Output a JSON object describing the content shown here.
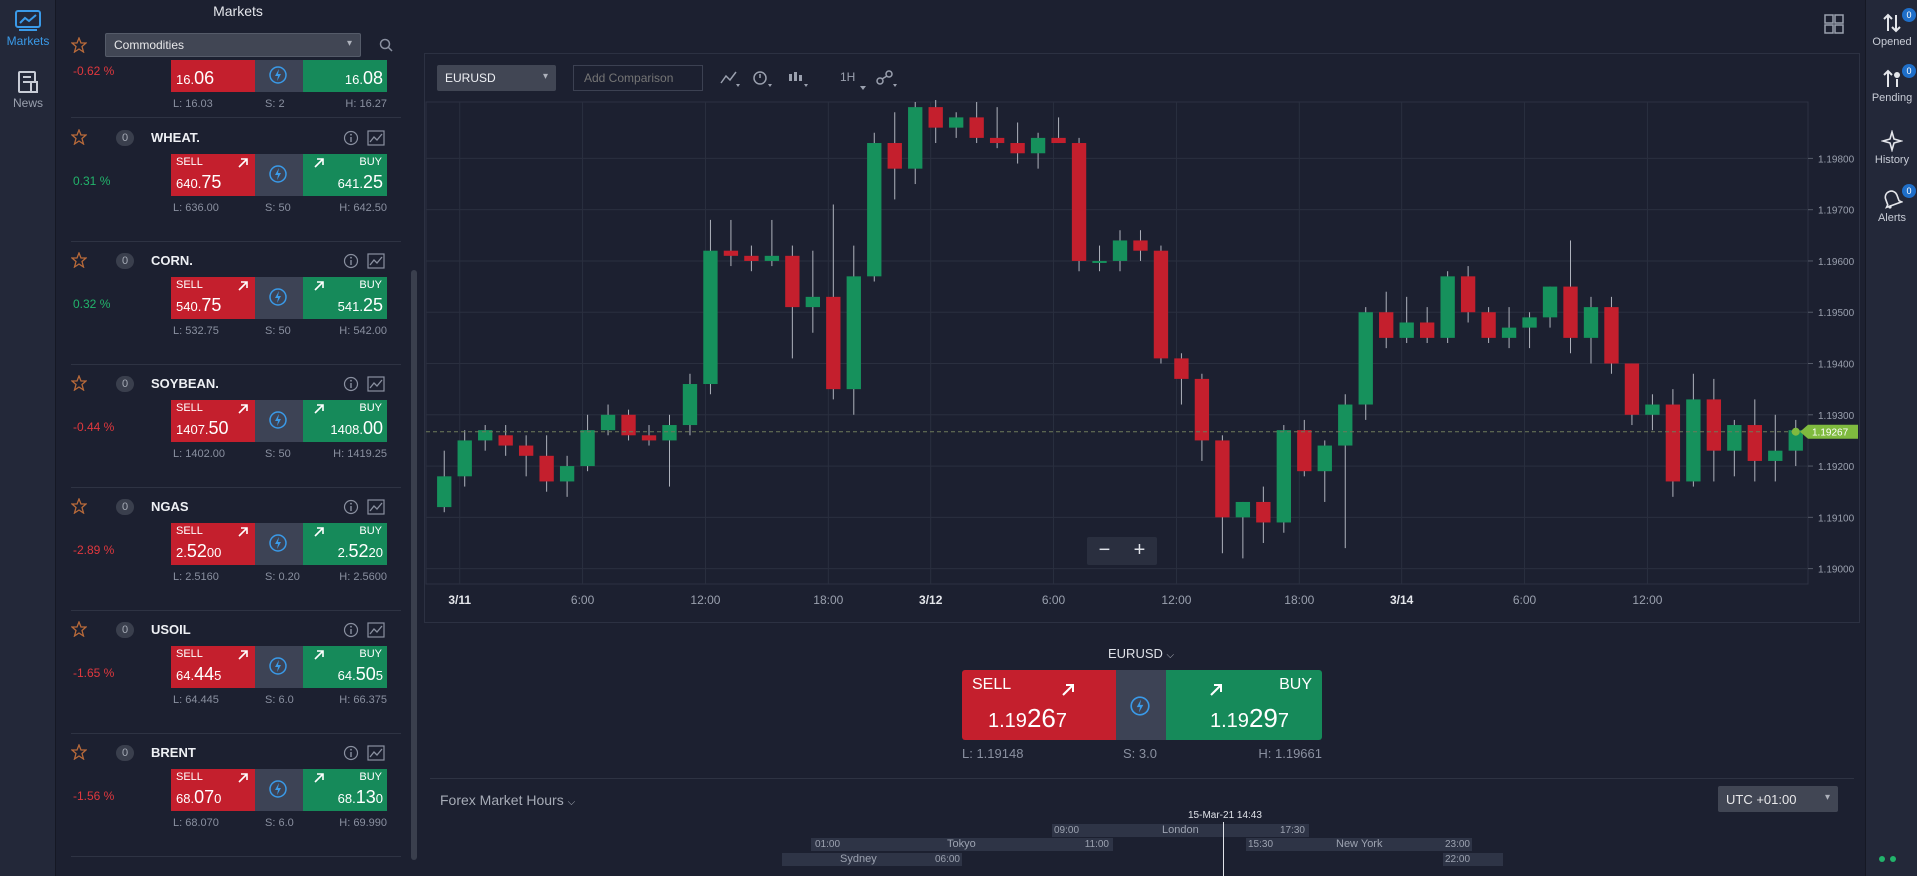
{
  "left_rail": {
    "markets_label": "Markets",
    "news_label": "News"
  },
  "markets": {
    "title": "Markets",
    "category": "Commodities",
    "top_row": {
      "change": "-0.62 %",
      "sell_small": "16.",
      "sell_big": "06",
      "buy_small": "16.",
      "buy_big": "08",
      "low": "L: 16.03",
      "spread": "S: 2",
      "high": "H: 16.27"
    },
    "rows": [
      {
        "count": "0",
        "name": "WHEAT.",
        "change": "0.31 %",
        "dir": "pos",
        "sell_label": "SELL",
        "buy_label": "BUY",
        "sell_a": "640.",
        "sell_b": "75",
        "sell_c": "",
        "buy_a": "641.",
        "buy_b": "25",
        "buy_c": "",
        "low": "L: 636.00",
        "spread": "S: 50",
        "high": "H: 642.50"
      },
      {
        "count": "0",
        "name": "CORN.",
        "change": "0.32 %",
        "dir": "pos",
        "sell_label": "SELL",
        "buy_label": "BUY",
        "sell_a": "540.",
        "sell_b": "75",
        "sell_c": "",
        "buy_a": "541.",
        "buy_b": "25",
        "buy_c": "",
        "low": "L: 532.75",
        "spread": "S: 50",
        "high": "H: 542.00"
      },
      {
        "count": "0",
        "name": "SOYBEAN.",
        "change": "-0.44 %",
        "dir": "neg",
        "sell_label": "SELL",
        "buy_label": "BUY",
        "sell_a": "1407.",
        "sell_b": "50",
        "sell_c": "",
        "buy_a": "1408.",
        "buy_b": "00",
        "buy_c": "",
        "low": "L: 1402.00",
        "spread": "S: 50",
        "high": "H: 1419.25"
      },
      {
        "count": "0",
        "name": "NGAS",
        "change": "-2.89 %",
        "dir": "neg",
        "sell_label": "SELL",
        "buy_label": "BUY",
        "sell_a": "2.",
        "sell_b": "52",
        "sell_c": "00",
        "buy_a": "2.",
        "buy_b": "52",
        "buy_c": "20",
        "low": "L: 2.5160",
        "spread": "S: 0.20",
        "high": "H: 2.5600"
      },
      {
        "count": "0",
        "name": "USOIL",
        "change": "-1.65 %",
        "dir": "neg",
        "sell_label": "SELL",
        "buy_label": "BUY",
        "sell_a": "64.",
        "sell_b": "44",
        "sell_c": "5",
        "buy_a": "64.",
        "buy_b": "50",
        "buy_c": "5",
        "low": "L: 64.445",
        "spread": "S: 6.0",
        "high": "H: 66.375"
      },
      {
        "count": "0",
        "name": "BRENT",
        "change": "-1.56 %",
        "dir": "neg",
        "sell_label": "SELL",
        "buy_label": "BUY",
        "sell_a": "68.",
        "sell_b": "07",
        "sell_c": "0",
        "buy_a": "68.",
        "buy_b": "13",
        "buy_c": "0",
        "low": "L: 68.070",
        "spread": "S: 6.0",
        "high": "H: 69.990"
      }
    ]
  },
  "chart": {
    "symbol": "EURUSD",
    "comparison_placeholder": "Add Comparison",
    "interval": "1H",
    "current_price": "1.19267",
    "price_ticks": [
      "1.19800",
      "1.19700",
      "1.19600",
      "1.19500",
      "1.19400",
      "1.19300",
      "1.19200",
      "1.19100",
      "1.19000"
    ],
    "time_ticks": [
      {
        "label": "3/11",
        "bold": true
      },
      {
        "label": "6:00",
        "bold": false
      },
      {
        "label": "12:00",
        "bold": false
      },
      {
        "label": "18:00",
        "bold": false
      },
      {
        "label": "3/12",
        "bold": true
      },
      {
        "label": "6:00",
        "bold": false
      },
      {
        "label": "12:00",
        "bold": false
      },
      {
        "label": "18:00",
        "bold": false
      },
      {
        "label": "3/14",
        "bold": true
      },
      {
        "label": "6:00",
        "bold": false
      },
      {
        "label": "12:00",
        "bold": false
      }
    ],
    "zoom_out": "−",
    "zoom_in": "+"
  },
  "chart_data": {
    "type": "candlestick",
    "symbol": "EURUSD",
    "interval": "1H",
    "ylim": [
      1.1897,
      1.1991
    ],
    "last_price": 1.19267,
    "ohlc": [
      [
        1.1912,
        1.1923,
        1.1911,
        1.1918
      ],
      [
        1.1918,
        1.1927,
        1.1916,
        1.1925
      ],
      [
        1.1925,
        1.1928,
        1.1923,
        1.1927
      ],
      [
        1.1926,
        1.1928,
        1.1922,
        1.1924
      ],
      [
        1.1924,
        1.1926,
        1.1918,
        1.1922
      ],
      [
        1.1922,
        1.1926,
        1.1915,
        1.1917
      ],
      [
        1.1917,
        1.1922,
        1.1914,
        1.192
      ],
      [
        1.192,
        1.193,
        1.1919,
        1.1927
      ],
      [
        1.1927,
        1.1932,
        1.1926,
        1.193
      ],
      [
        1.193,
        1.1931,
        1.1925,
        1.1926
      ],
      [
        1.1926,
        1.1928,
        1.1924,
        1.1925
      ],
      [
        1.1925,
        1.193,
        1.1916,
        1.1928
      ],
      [
        1.1928,
        1.1938,
        1.1926,
        1.1936
      ],
      [
        1.1936,
        1.1968,
        1.1934,
        1.1962
      ],
      [
        1.1962,
        1.1968,
        1.1959,
        1.1961
      ],
      [
        1.1961,
        1.1963,
        1.1958,
        1.196
      ],
      [
        1.196,
        1.1968,
        1.1959,
        1.1961
      ],
      [
        1.1961,
        1.1963,
        1.1941,
        1.1951
      ],
      [
        1.1951,
        1.1962,
        1.1946,
        1.1953
      ],
      [
        1.1953,
        1.1971,
        1.1933,
        1.1935
      ],
      [
        1.1935,
        1.1963,
        1.193,
        1.1957
      ],
      [
        1.1957,
        1.1985,
        1.1956,
        1.1983
      ],
      [
        1.1983,
        1.1989,
        1.1972,
        1.1978
      ],
      [
        1.1978,
        1.1991,
        1.1975,
        1.199
      ],
      [
        1.199,
        1.1993,
        1.1983,
        1.1986
      ],
      [
        1.1986,
        1.1989,
        1.1984,
        1.1988
      ],
      [
        1.1988,
        1.1991,
        1.1983,
        1.1984
      ],
      [
        1.1984,
        1.199,
        1.1982,
        1.1983
      ],
      [
        1.1983,
        1.1987,
        1.1979,
        1.1981
      ],
      [
        1.1981,
        1.1985,
        1.1978,
        1.1984
      ],
      [
        1.1984,
        1.1988,
        1.1983,
        1.1983
      ],
      [
        1.1983,
        1.1984,
        1.1958,
        1.196
      ],
      [
        1.196,
        1.1963,
        1.1958,
        1.196
      ],
      [
        1.196,
        1.1966,
        1.1958,
        1.1964
      ],
      [
        1.1964,
        1.1966,
        1.196,
        1.1962
      ],
      [
        1.1962,
        1.1963,
        1.194,
        1.1941
      ],
      [
        1.1941,
        1.1942,
        1.1932,
        1.1937
      ],
      [
        1.1937,
        1.1938,
        1.1921,
        1.1925
      ],
      [
        1.1925,
        1.1926,
        1.1903,
        1.191
      ],
      [
        1.191,
        1.1913,
        1.1902,
        1.1913
      ],
      [
        1.1913,
        1.1916,
        1.1905,
        1.1909
      ],
      [
        1.1909,
        1.1928,
        1.1907,
        1.1927
      ],
      [
        1.1927,
        1.1929,
        1.1918,
        1.1919
      ],
      [
        1.1919,
        1.1925,
        1.1913,
        1.1924
      ],
      [
        1.1924,
        1.1934,
        1.1904,
        1.1932
      ],
      [
        1.1932,
        1.1951,
        1.1929,
        1.195
      ],
      [
        1.195,
        1.1954,
        1.1943,
        1.1945
      ],
      [
        1.1945,
        1.1953,
        1.1944,
        1.1948
      ],
      [
        1.1948,
        1.1951,
        1.1944,
        1.1945
      ],
      [
        1.1945,
        1.1958,
        1.1944,
        1.1957
      ],
      [
        1.1957,
        1.1959,
        1.1948,
        1.195
      ],
      [
        1.195,
        1.1951,
        1.1944,
        1.1945
      ],
      [
        1.1945,
        1.1951,
        1.1943,
        1.1947
      ],
      [
        1.1947,
        1.195,
        1.1943,
        1.1949
      ],
      [
        1.1949,
        1.1955,
        1.1947,
        1.1955
      ],
      [
        1.1955,
        1.1964,
        1.1942,
        1.1945
      ],
      [
        1.1945,
        1.1953,
        1.194,
        1.1951
      ],
      [
        1.1951,
        1.1953,
        1.1938,
        1.194
      ],
      [
        1.194,
        1.194,
        1.1928,
        1.193
      ],
      [
        1.193,
        1.1934,
        1.1927,
        1.1932
      ],
      [
        1.1932,
        1.1935,
        1.1914,
        1.1917
      ],
      [
        1.1917,
        1.1938,
        1.1916,
        1.1933
      ],
      [
        1.1933,
        1.1937,
        1.1917,
        1.1923
      ],
      [
        1.1923,
        1.1929,
        1.1918,
        1.1928
      ],
      [
        1.1928,
        1.1933,
        1.1917,
        1.1921
      ],
      [
        1.1921,
        1.193,
        1.1917,
        1.1923
      ],
      [
        1.1923,
        1.1929,
        1.192,
        1.1927
      ]
    ]
  },
  "trade": {
    "symbol": "EURUSD",
    "sell_label": "SELL",
    "buy_label": "BUY",
    "sell_a": "1.19",
    "sell_b": "26",
    "sell_c": "7",
    "buy_a": "1.19",
    "buy_b": "29",
    "buy_c": "7",
    "low": "L: 1.19148",
    "spread": "S: 3.0",
    "high": "H: 1.19661"
  },
  "market_hours": {
    "title": "Forex Market Hours",
    "timezone": "UTC +01:00",
    "now": "15-Mar-21 14:43",
    "london": {
      "name": "London",
      "open": "09:00",
      "close": "17:30"
    },
    "tokyo": {
      "name": "Tokyo",
      "open": "01:00",
      "close": "11:00"
    },
    "newyork": {
      "name": "New York",
      "open": "15:30",
      "close": "23:00"
    },
    "sydney": {
      "name": "Sydney",
      "open": "",
      "close": "06:00",
      "close2": "22:00"
    }
  },
  "right_rail": {
    "opened": "Opened",
    "opened_count": "0",
    "pending": "Pending",
    "pending_count": "0",
    "history": "History",
    "alerts": "Alerts",
    "alerts_count": "0"
  },
  "colors": {
    "up": "#16915c",
    "down": "#c41f2d",
    "accent": "#3a9ae8",
    "last_price": "#7fba3f"
  }
}
